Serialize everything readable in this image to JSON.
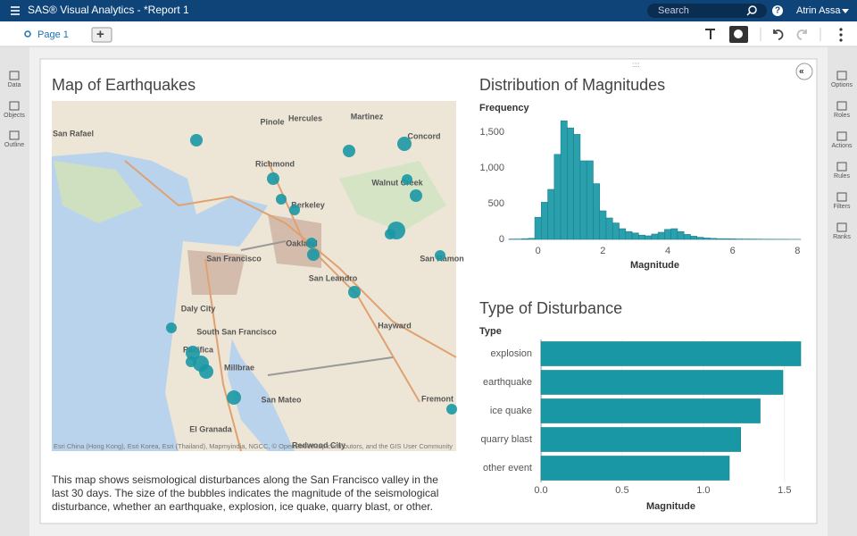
{
  "app": {
    "title": "SAS® Visual Analytics - *Report 1",
    "search": "Search",
    "user": "Atrin Assa",
    "page_tab": "Page 1",
    "left_panel": [
      "Data",
      "Objects",
      "Outline"
    ],
    "right_panel": [
      "Options",
      "Roles",
      "Actions",
      "Rules",
      "Filters",
      "Ranks"
    ]
  },
  "map": {
    "title": "Map of Earthquakes",
    "labels": [
      "San Rafael",
      "Richmond",
      "Berkeley",
      "Oakland",
      "San Francisco",
      "Daly City",
      "South San Francisco",
      "San Mateo",
      "Hayward",
      "Concord",
      "Walnut Creek",
      "Martinez",
      "Pinole",
      "Hercules",
      "San Leandro",
      "Millbrae",
      "Pacifica",
      "El Granada",
      "Fremont",
      "San Ramon",
      "Redwood City"
    ],
    "attribution": "Esri China (Hong Kong), Esri Korea, Esri (Thailand), Mapmyindia, NGCC, © OpenStreetMap contributors, and the GIS User Community",
    "description": "This map shows seismological disturbances along the San Francisco valley in the last 30 days. The size of the bubbles indicates the magnitude of the seismological disturbance, whether an earthquake, explosion, ice quake, quarry blast, or other."
  },
  "chart_data": [
    {
      "type": "histogram",
      "title": "Distribution of Magnitudes",
      "y_label": "Frequency",
      "x_label": "Magnitude",
      "color": "#2aa0ad",
      "bins": [
        -0.9,
        -0.7,
        -0.5,
        -0.3,
        -0.1,
        0.1,
        0.3,
        0.5,
        0.7,
        0.9,
        1.1,
        1.3,
        1.5,
        1.7,
        1.9,
        2.1,
        2.3,
        2.5,
        2.7,
        2.9,
        3.1,
        3.3,
        3.5,
        3.7,
        3.9,
        4.1,
        4.3,
        4.5,
        4.7,
        4.9,
        5.1,
        5.3,
        5.5,
        5.7,
        5.9,
        6.1,
        6.3,
        6.5,
        6.7,
        6.9,
        7.1,
        7.3,
        7.5,
        7.7,
        7.9,
        8.1
      ],
      "values": [
        5,
        5,
        10,
        15,
        310,
        520,
        700,
        1190,
        1660,
        1560,
        1470,
        1100,
        1100,
        780,
        400,
        300,
        230,
        150,
        110,
        90,
        60,
        50,
        75,
        100,
        140,
        150,
        110,
        70,
        45,
        30,
        20,
        15,
        10,
        10,
        8,
        6,
        5,
        5,
        4,
        3,
        3,
        2,
        2,
        1,
        1
      ],
      "xlim": [
        -0.9,
        8.1
      ],
      "xticks": [
        0,
        2,
        4,
        6,
        8
      ],
      "ylim": [
        0,
        1700
      ],
      "yticks": [
        0,
        500,
        {
          "value": 1000,
          "label": "1,000"
        },
        {
          "value": 1500,
          "label": "1,500"
        }
      ]
    },
    {
      "type": "hbar",
      "title": "Type of Disturbance",
      "y_label": "Type",
      "x_label": "Magnitude",
      "color": "#1a97a4",
      "categories": [
        "explosion",
        "earthquake",
        "ice quake",
        "quarry blast",
        "other event"
      ],
      "values": [
        1.6,
        1.49,
        1.35,
        1.23,
        1.16
      ],
      "xlim": [
        0,
        1.6
      ],
      "xticks": [
        {
          "value": 0,
          "label": "0.0"
        },
        0.5,
        {
          "value": 1,
          "label": "1.0"
        },
        1.5
      ],
      "grid": true
    }
  ]
}
